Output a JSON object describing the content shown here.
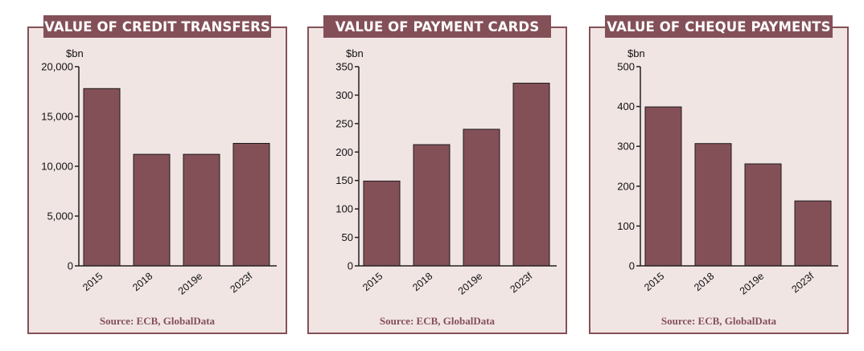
{
  "colors": {
    "bar": "#845058",
    "panel": "#f1e5e4",
    "title_bar": "#845058",
    "axis": "#222222"
  },
  "chart_data": [
    {
      "type": "bar",
      "title": "VALUE OF CREDIT TRANSFERS",
      "ylabel": "$bn",
      "categories": [
        "2015",
        "2018",
        "2019e",
        "2023f"
      ],
      "values": [
        17800,
        11200,
        11200,
        12300
      ],
      "ylim": [
        0,
        20000
      ],
      "yticks": [
        0,
        5000,
        10000,
        15000,
        20000
      ],
      "ytick_labels": [
        "0",
        "5,000",
        "10,000",
        "15,000",
        "20,000"
      ],
      "source": "Source: ECB, GlobalData"
    },
    {
      "type": "bar",
      "title": "VALUE OF PAYMENT CARDS",
      "ylabel": "$bn",
      "categories": [
        "2015",
        "2018",
        "2019e",
        "2023f"
      ],
      "values": [
        149,
        213,
        240,
        321
      ],
      "ylim": [
        0,
        350
      ],
      "yticks": [
        0,
        50,
        100,
        150,
        200,
        250,
        300,
        350
      ],
      "ytick_labels": [
        "0",
        "50",
        "100",
        "150",
        "200",
        "250",
        "300",
        "350"
      ],
      "source": "Source: ECB, GlobalData"
    },
    {
      "type": "bar",
      "title": "VALUE OF CHEQUE PAYMENTS",
      "ylabel": "$bn",
      "categories": [
        "2015",
        "2018",
        "2019e",
        "2023f"
      ],
      "values": [
        399,
        307,
        256,
        163
      ],
      "ylim": [
        0,
        500
      ],
      "yticks": [
        0,
        100,
        200,
        300,
        400,
        500
      ],
      "ytick_labels": [
        "0",
        "100",
        "200",
        "300",
        "400",
        "500"
      ],
      "source": "Source: ECB, GlobalData"
    }
  ]
}
